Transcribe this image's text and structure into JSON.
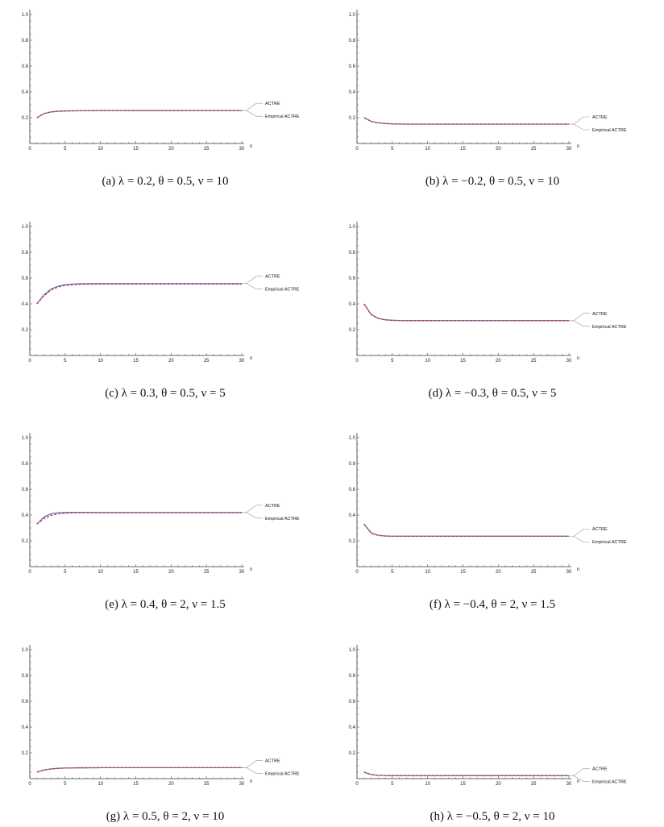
{
  "figure": {
    "panels": [
      {
        "caption": "(a) λ = 0.2, θ = 0.5, ν = 10"
      },
      {
        "caption": "(b) λ = −0.2, θ = 0.5, ν = 10"
      },
      {
        "caption": "(c) λ = 0.3, θ = 0.5, ν = 5"
      },
      {
        "caption": "(d) λ = −0.3, θ = 0.5, ν = 5"
      },
      {
        "caption": "(e) λ = 0.4, θ = 2, ν = 1.5"
      },
      {
        "caption": "(f) λ = −0.4, θ = 2, ν = 1.5"
      },
      {
        "caption": "(g) λ = 0.5, θ = 2, ν = 10"
      },
      {
        "caption": "(h) λ = −0.5, θ = 2, ν = 10"
      }
    ]
  },
  "chart_data": [
    {
      "type": "line",
      "panel": "a",
      "xlabel": "n",
      "ylabel": "",
      "xlim": [
        0,
        30
      ],
      "ylim": [
        0,
        1.0
      ],
      "x_ticks": [
        0,
        5,
        10,
        15,
        20,
        25,
        30
      ],
      "y_ticks": [
        0.2,
        0.4,
        0.6,
        0.8,
        1.0
      ],
      "legend": [
        "ACTRE",
        "Empirical ACTRE"
      ],
      "x": [
        1,
        2,
        3,
        4,
        5,
        6,
        7,
        8,
        10,
        15,
        20,
        25,
        30
      ],
      "series": [
        {
          "name": "ACTRE",
          "color": "#5b7fc4",
          "style": "solid",
          "values": [
            0.2,
            0.232,
            0.245,
            0.25,
            0.252,
            0.253,
            0.254,
            0.254,
            0.255,
            0.255,
            0.255,
            0.255,
            0.255
          ]
        },
        {
          "name": "Empirical ACTRE",
          "color": "#c8324a",
          "style": "dashed",
          "values": [
            0.2,
            0.231,
            0.244,
            0.25,
            0.252,
            0.253,
            0.254,
            0.254,
            0.255,
            0.255,
            0.255,
            0.255,
            0.255
          ]
        }
      ]
    },
    {
      "type": "line",
      "panel": "b",
      "xlabel": "n",
      "ylabel": "",
      "xlim": [
        0,
        30
      ],
      "ylim": [
        0,
        1.0
      ],
      "x_ticks": [
        0,
        5,
        10,
        15,
        20,
        25,
        30
      ],
      "y_ticks": [
        0.2,
        0.4,
        0.6,
        0.8,
        1.0
      ],
      "legend": [
        "ACTRE",
        "Empirical ACTRE"
      ],
      "x": [
        1,
        2,
        3,
        4,
        5,
        6,
        7,
        8,
        10,
        15,
        20,
        25,
        30
      ],
      "series": [
        {
          "name": "ACTRE",
          "color": "#5b7fc4",
          "style": "solid",
          "values": [
            0.2,
            0.172,
            0.16,
            0.155,
            0.152,
            0.151,
            0.15,
            0.15,
            0.15,
            0.15,
            0.15,
            0.15,
            0.15
          ]
        },
        {
          "name": "Empirical ACTRE",
          "color": "#c8324a",
          "style": "dashed",
          "values": [
            0.2,
            0.171,
            0.16,
            0.155,
            0.152,
            0.151,
            0.15,
            0.15,
            0.15,
            0.15,
            0.15,
            0.15,
            0.15
          ]
        }
      ]
    },
    {
      "type": "line",
      "panel": "c",
      "xlabel": "n",
      "ylabel": "",
      "xlim": [
        0,
        30
      ],
      "ylim": [
        0,
        1.0
      ],
      "x_ticks": [
        0,
        5,
        10,
        15,
        20,
        25,
        30
      ],
      "y_ticks": [
        0.2,
        0.4,
        0.6,
        0.8,
        1.0
      ],
      "legend": [
        "ACTRE",
        "Empirical ACTRE"
      ],
      "x": [
        1,
        2,
        3,
        4,
        5,
        6,
        7,
        8,
        10,
        15,
        20,
        25,
        30
      ],
      "series": [
        {
          "name": "ACTRE",
          "color": "#5b7fc4",
          "style": "solid",
          "values": [
            0.4,
            0.47,
            0.515,
            0.537,
            0.548,
            0.553,
            0.556,
            0.557,
            0.558,
            0.558,
            0.558,
            0.558,
            0.558
          ]
        },
        {
          "name": "Empirical ACTRE",
          "color": "#c8324a",
          "style": "dashed",
          "values": [
            0.4,
            0.462,
            0.508,
            0.531,
            0.543,
            0.548,
            0.551,
            0.552,
            0.553,
            0.553,
            0.553,
            0.553,
            0.553
          ]
        }
      ]
    },
    {
      "type": "line",
      "panel": "d",
      "xlabel": "n",
      "ylabel": "",
      "xlim": [
        0,
        30
      ],
      "ylim": [
        0,
        1.0
      ],
      "x_ticks": [
        0,
        5,
        10,
        15,
        20,
        25,
        30
      ],
      "y_ticks": [
        0.2,
        0.4,
        0.6,
        0.8,
        1.0
      ],
      "legend": [
        "ACTRE",
        "Empirical ACTRE"
      ],
      "x": [
        1,
        2,
        3,
        4,
        5,
        6,
        7,
        8,
        10,
        15,
        20,
        25,
        30
      ],
      "series": [
        {
          "name": "ACTRE",
          "color": "#5b7fc4",
          "style": "solid",
          "values": [
            0.4,
            0.318,
            0.288,
            0.277,
            0.273,
            0.271,
            0.27,
            0.27,
            0.27,
            0.27,
            0.27,
            0.27,
            0.27
          ]
        },
        {
          "name": "Empirical ACTRE",
          "color": "#c8324a",
          "style": "dashed",
          "values": [
            0.4,
            0.317,
            0.287,
            0.276,
            0.272,
            0.271,
            0.27,
            0.27,
            0.27,
            0.27,
            0.27,
            0.27,
            0.27
          ]
        }
      ]
    },
    {
      "type": "line",
      "panel": "e",
      "xlabel": "n",
      "ylabel": "",
      "xlim": [
        0,
        30
      ],
      "ylim": [
        0,
        1.0
      ],
      "x_ticks": [
        0,
        5,
        10,
        15,
        20,
        25,
        30
      ],
      "y_ticks": [
        0.2,
        0.4,
        0.6,
        0.8,
        1.0
      ],
      "legend": [
        "ACTRE",
        "Empirical ACTRE"
      ],
      "x": [
        1,
        2,
        3,
        4,
        5,
        6,
        7,
        8,
        10,
        15,
        20,
        25,
        30
      ],
      "series": [
        {
          "name": "ACTRE",
          "color": "#5b7fc4",
          "style": "solid",
          "values": [
            0.33,
            0.385,
            0.41,
            0.418,
            0.42,
            0.421,
            0.421,
            0.421,
            0.42,
            0.42,
            0.42,
            0.42,
            0.42
          ]
        },
        {
          "name": "Empirical ACTRE",
          "color": "#c8324a",
          "style": "dashed",
          "values": [
            0.33,
            0.372,
            0.398,
            0.41,
            0.415,
            0.417,
            0.418,
            0.418,
            0.418,
            0.418,
            0.418,
            0.418,
            0.418
          ]
        }
      ]
    },
    {
      "type": "line",
      "panel": "f",
      "xlabel": "n",
      "ylabel": "",
      "xlim": [
        0,
        30
      ],
      "ylim": [
        0,
        1.0
      ],
      "x_ticks": [
        0,
        5,
        10,
        15,
        20,
        25,
        30
      ],
      "y_ticks": [
        0.2,
        0.4,
        0.6,
        0.8,
        1.0
      ],
      "legend": [
        "ACTRE",
        "Empirical ACTRE"
      ],
      "x": [
        1,
        2,
        3,
        4,
        5,
        6,
        7,
        8,
        10,
        15,
        20,
        25,
        30
      ],
      "series": [
        {
          "name": "ACTRE",
          "color": "#5b7fc4",
          "style": "solid",
          "values": [
            0.33,
            0.262,
            0.243,
            0.238,
            0.236,
            0.236,
            0.236,
            0.236,
            0.236,
            0.236,
            0.236,
            0.236,
            0.236
          ]
        },
        {
          "name": "Empirical ACTRE",
          "color": "#c8324a",
          "style": "dashed",
          "values": [
            0.33,
            0.26,
            0.242,
            0.237,
            0.236,
            0.236,
            0.236,
            0.236,
            0.236,
            0.236,
            0.236,
            0.236,
            0.236
          ]
        }
      ]
    },
    {
      "type": "line",
      "panel": "g",
      "xlabel": "n",
      "ylabel": "",
      "xlim": [
        0,
        30
      ],
      "ylim": [
        0,
        1.0
      ],
      "x_ticks": [
        0,
        5,
        10,
        15,
        20,
        25,
        30
      ],
      "y_ticks": [
        0.2,
        0.4,
        0.6,
        0.8,
        1.0
      ],
      "legend": [
        "ACTRE",
        "Empirical ACTRE"
      ],
      "x": [
        1,
        2,
        3,
        4,
        5,
        6,
        7,
        8,
        10,
        15,
        20,
        25,
        30
      ],
      "series": [
        {
          "name": "ACTRE",
          "color": "#5b7fc4",
          "style": "solid",
          "values": [
            0.05,
            0.067,
            0.076,
            0.08,
            0.082,
            0.083,
            0.084,
            0.084,
            0.085,
            0.085,
            0.085,
            0.085,
            0.085
          ]
        },
        {
          "name": "Empirical ACTRE",
          "color": "#c8324a",
          "style": "dashed",
          "values": [
            0.05,
            0.066,
            0.075,
            0.08,
            0.082,
            0.083,
            0.084,
            0.084,
            0.085,
            0.085,
            0.085,
            0.085,
            0.085
          ]
        }
      ]
    },
    {
      "type": "line",
      "panel": "h",
      "xlabel": "n",
      "ylabel": "",
      "xlim": [
        0,
        30
      ],
      "ylim": [
        0,
        1.0
      ],
      "x_ticks": [
        0,
        5,
        10,
        15,
        20,
        25,
        30
      ],
      "y_ticks": [
        0.2,
        0.4,
        0.6,
        0.8,
        1.0
      ],
      "legend": [
        "ACTRE",
        "Empirical ACTRE"
      ],
      "x": [
        1,
        2,
        3,
        4,
        5,
        6,
        7,
        8,
        10,
        15,
        20,
        25,
        30
      ],
      "series": [
        {
          "name": "ACTRE",
          "color": "#5b7fc4",
          "style": "solid",
          "values": [
            0.05,
            0.032,
            0.026,
            0.024,
            0.023,
            0.023,
            0.023,
            0.023,
            0.023,
            0.023,
            0.023,
            0.023,
            0.023
          ]
        },
        {
          "name": "Empirical ACTRE",
          "color": "#c8324a",
          "style": "dashed",
          "values": [
            0.05,
            0.031,
            0.026,
            0.024,
            0.023,
            0.023,
            0.023,
            0.023,
            0.023,
            0.023,
            0.023,
            0.023,
            0.023
          ]
        }
      ]
    }
  ]
}
